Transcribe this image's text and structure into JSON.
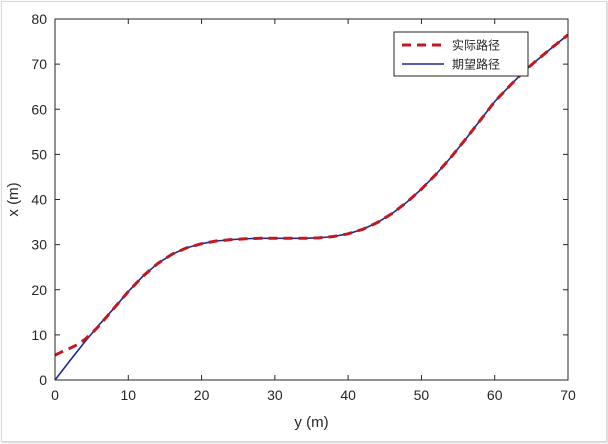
{
  "chart_data": {
    "type": "line",
    "xlabel": "y (m)",
    "ylabel": "x (m)",
    "xlim": [
      0,
      70
    ],
    "ylim": [
      0,
      80
    ],
    "xticks": [
      0,
      10,
      20,
      30,
      40,
      50,
      60,
      70
    ],
    "yticks": [
      0,
      10,
      20,
      30,
      40,
      50,
      60,
      70,
      80
    ],
    "grid": false,
    "legend_position": "top-right",
    "series": [
      {
        "name": "实际路径",
        "color": "#c0191f",
        "style": "dashed",
        "x": [
          0,
          1,
          2,
          3,
          4,
          5,
          6,
          8,
          10,
          12,
          14,
          16,
          18,
          20,
          22,
          24,
          26,
          28,
          30,
          32,
          34,
          36,
          38,
          40,
          42,
          44,
          46,
          48,
          50,
          52,
          54,
          56,
          58,
          60,
          62,
          64,
          66,
          68,
          70
        ],
        "y": [
          5.5,
          6.3,
          7.0,
          7.8,
          8.9,
          10.3,
          12.0,
          15.8,
          19.6,
          23.0,
          25.8,
          27.9,
          29.3,
          30.2,
          30.8,
          31.1,
          31.3,
          31.4,
          31.4,
          31.4,
          31.4,
          31.5,
          31.8,
          32.4,
          33.4,
          34.9,
          36.9,
          39.4,
          42.3,
          45.6,
          49.3,
          53.3,
          57.5,
          61.7,
          65.1,
          68.4,
          71.2,
          73.9,
          76.5
        ]
      },
      {
        "name": "期望路径",
        "color": "#1f2a8f",
        "style": "solid",
        "x": [
          0,
          2,
          4,
          6,
          8,
          10,
          12,
          14,
          16,
          18,
          20,
          22,
          24,
          26,
          28,
          30,
          32,
          34,
          36,
          38,
          40,
          42,
          44,
          46,
          48,
          50,
          52,
          54,
          56,
          58,
          60,
          62,
          64,
          66,
          68,
          70
        ],
        "y": [
          0,
          4.2,
          8.3,
          12.2,
          15.8,
          19.6,
          23.0,
          25.8,
          27.9,
          29.3,
          30.2,
          30.8,
          31.1,
          31.3,
          31.4,
          31.4,
          31.4,
          31.4,
          31.5,
          31.8,
          32.4,
          33.4,
          34.9,
          36.9,
          39.4,
          42.3,
          45.6,
          49.3,
          53.3,
          57.5,
          61.7,
          65.1,
          68.4,
          71.2,
          73.9,
          76.5
        ]
      }
    ]
  }
}
